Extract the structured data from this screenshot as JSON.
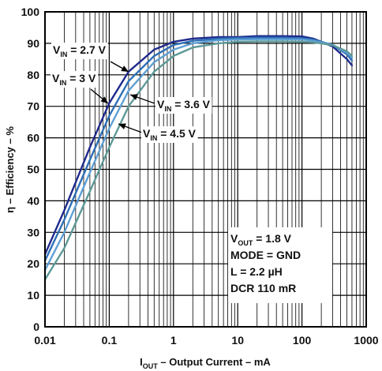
{
  "chart_data": {
    "type": "line",
    "xscale": "log",
    "xlim": [
      0.01,
      1000
    ],
    "ylim": [
      0,
      100
    ],
    "grid": true,
    "x_tick_labels": [
      "0.01",
      "0.1",
      "1",
      "10",
      "100",
      "1000"
    ],
    "y_tick_labels": [
      "0",
      "10",
      "20",
      "30",
      "40",
      "50",
      "60",
      "70",
      "80",
      "90",
      "100"
    ],
    "xlabel": {
      "main": "I",
      "sub": "OUT",
      "rest": " – Output Current – mA"
    },
    "ylabel": "η – Efficiency – %",
    "series": [
      {
        "name": "VIN = 2.7 V",
        "label": {
          "main": "V",
          "sub": "IN",
          "rest": " = 2.7 V"
        },
        "color": "#1f2a8c",
        "x": [
          0.01,
          0.02,
          0.05,
          0.1,
          0.2,
          0.5,
          1,
          2,
          5,
          10,
          20,
          50,
          100,
          150,
          200,
          300,
          500,
          600
        ],
        "y": [
          23,
          37,
          57,
          71,
          81,
          88,
          90.5,
          91.5,
          92,
          92,
          92.3,
          92.3,
          92.2,
          91.5,
          90.5,
          89,
          85,
          83
        ]
      },
      {
        "name": "VIN = 3 V",
        "label": {
          "main": "V",
          "sub": "IN",
          "rest": " = 3 V"
        },
        "color": "#2e6fb7",
        "x": [
          0.01,
          0.02,
          0.05,
          0.1,
          0.2,
          0.5,
          1,
          2,
          5,
          10,
          20,
          50,
          100,
          150,
          200,
          300,
          500,
          600
        ],
        "y": [
          21,
          34,
          53,
          67,
          78,
          86,
          89.5,
          90.8,
          91.5,
          91.7,
          91.8,
          91.8,
          91.6,
          91.2,
          90.5,
          89.5,
          86.5,
          84.5
        ]
      },
      {
        "name": "VIN = 3.6 V",
        "label": {
          "main": "V",
          "sub": "IN",
          "rest": " = 3.6 V"
        },
        "color": "#5e9fd4",
        "x": [
          0.01,
          0.02,
          0.05,
          0.1,
          0.2,
          0.5,
          1,
          2,
          5,
          10,
          20,
          50,
          100,
          150,
          200,
          300,
          500,
          600
        ],
        "y": [
          18,
          30,
          49,
          63,
          75,
          84,
          88,
          90,
          91,
          91.2,
          91.3,
          91.3,
          91.2,
          90.8,
          90.3,
          89.6,
          87,
          85.5
        ]
      },
      {
        "name": "VIN = 4.5 V",
        "label": {
          "main": "V",
          "sub": "IN",
          "rest": " = 4.5 V"
        },
        "color": "#5d9a98",
        "x": [
          0.01,
          0.02,
          0.05,
          0.1,
          0.2,
          0.5,
          1,
          2,
          5,
          10,
          20,
          50,
          100,
          150,
          200,
          300,
          500,
          600
        ],
        "y": [
          15,
          25,
          43,
          57,
          70,
          81,
          86,
          88.7,
          90,
          90.5,
          90.6,
          90.6,
          90.5,
          90.3,
          90,
          89.4,
          87.5,
          86
        ]
      }
    ],
    "conditions": [
      {
        "main": "V",
        "sub": "OUT",
        "rest": " = 1.8 V"
      },
      {
        "main": "MODE = GND",
        "sub": "",
        "rest": ""
      },
      {
        "main": "L = 2.2 µH",
        "sub": "",
        "rest": ""
      },
      {
        "main": "DCR 110 mR",
        "sub": "",
        "rest": ""
      }
    ]
  }
}
